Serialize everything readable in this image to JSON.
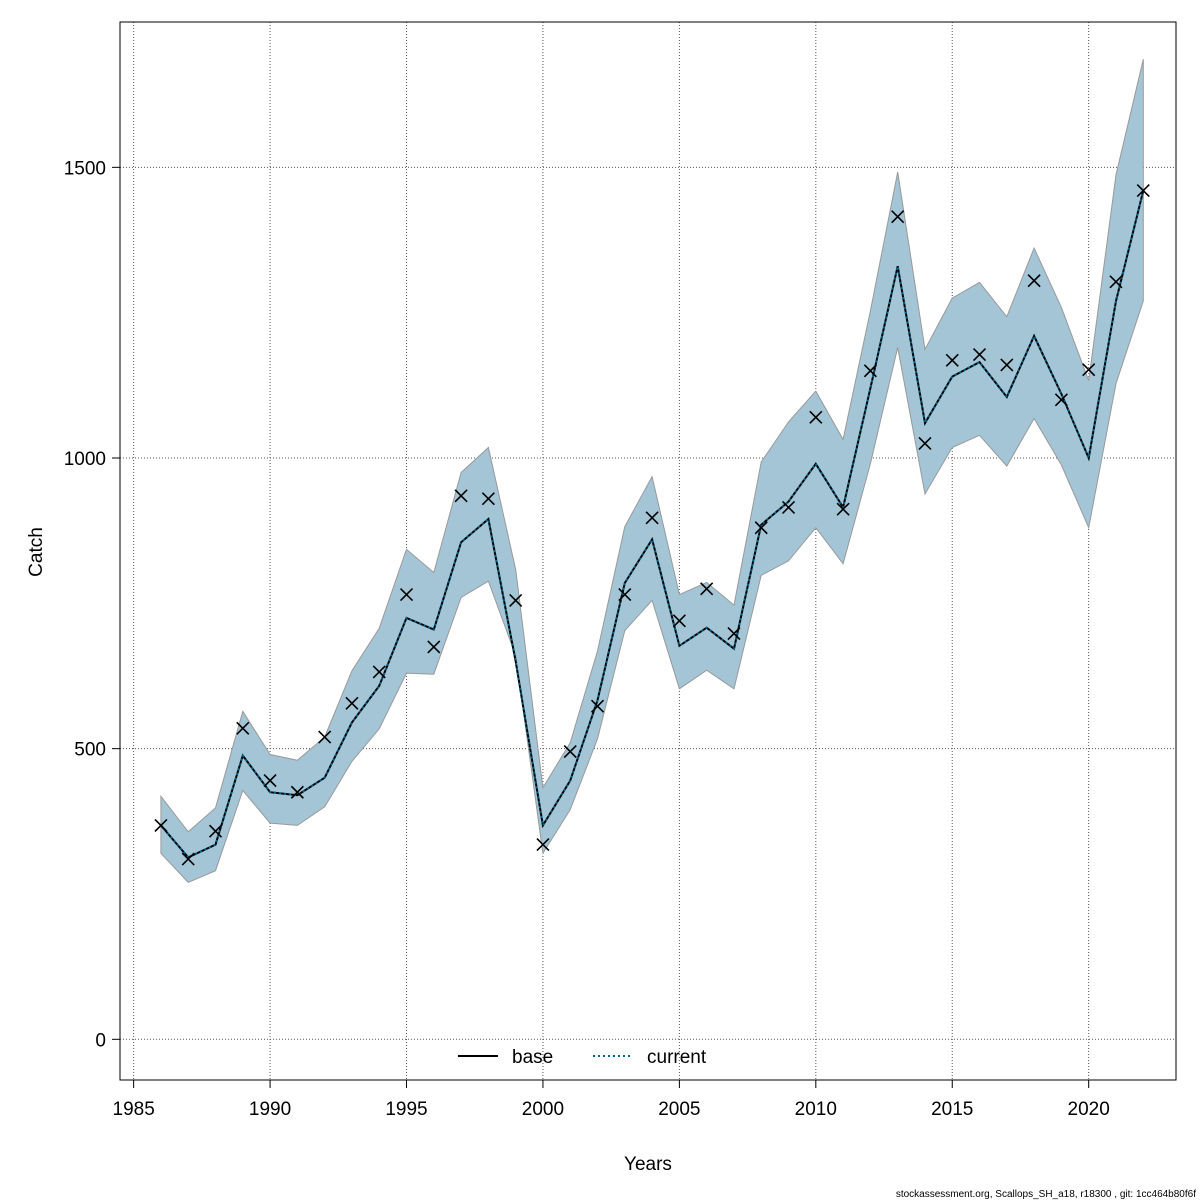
{
  "chart_data": {
    "type": "line",
    "xlabel": "Years",
    "ylabel": "Catch",
    "xlim": [
      1984.5,
      2023.2
    ],
    "ylim": [
      -70,
      1750
    ],
    "x_ticks": [
      1985,
      1990,
      1995,
      2000,
      2005,
      2010,
      2015,
      2020
    ],
    "y_ticks": [
      0,
      500,
      1000,
      1500
    ],
    "grid": true,
    "legend_position": "bottom",
    "x": [
      1986,
      1987,
      1988,
      1989,
      1990,
      1991,
      1992,
      1993,
      1994,
      1995,
      1996,
      1997,
      1998,
      1999,
      2000,
      2001,
      2002,
      2003,
      2004,
      2005,
      2006,
      2007,
      2008,
      2009,
      2010,
      2011,
      2012,
      2013,
      2014,
      2015,
      2016,
      2017,
      2018,
      2019,
      2020,
      2021,
      2022
    ],
    "series": [
      {
        "name": "base",
        "style": "solid",
        "color": "#000000",
        "values": [
          368,
          313,
          335,
          488,
          425,
          420,
          450,
          545,
          608,
          725,
          705,
          855,
          895,
          650,
          368,
          445,
          583,
          785,
          860,
          677,
          708,
          672,
          885,
          925,
          990,
          915,
          1120,
          1330,
          1060,
          1140,
          1165,
          1105,
          1210,
          1110,
          1000,
          1270,
          1460
        ]
      },
      {
        "name": "current",
        "style": "dotted",
        "color": "#00668f",
        "values": [
          368,
          313,
          335,
          488,
          425,
          420,
          450,
          545,
          608,
          725,
          705,
          855,
          895,
          650,
          368,
          445,
          583,
          785,
          860,
          677,
          708,
          672,
          885,
          925,
          990,
          915,
          1120,
          1330,
          1060,
          1140,
          1165,
          1105,
          1210,
          1110,
          1000,
          1270,
          1460
        ]
      }
    ],
    "ci_upper": [
      418,
      357,
      398,
      564,
      490,
      480,
      520,
      634,
      707,
      843,
      803,
      975,
      1018,
      808,
      433,
      510,
      668,
      882,
      968,
      765,
      786,
      747,
      993,
      1062,
      1115,
      1032,
      1253,
      1492,
      1187,
      1275,
      1302,
      1243,
      1361,
      1259,
      1133,
      1487,
      1686
    ],
    "ci_lower": [
      320,
      270,
      290,
      428,
      372,
      368,
      400,
      478,
      534,
      630,
      628,
      760,
      788,
      660,
      320,
      395,
      517,
      703,
      755,
      603,
      635,
      603,
      798,
      823,
      880,
      818,
      990,
      1190,
      938,
      1018,
      1039,
      986,
      1068,
      988,
      880,
      1128,
      1270
    ],
    "observed": {
      "marker": "x",
      "values": [
        368,
        310,
        358,
        535,
        445,
        425,
        520,
        578,
        632,
        765,
        675,
        935,
        930,
        755,
        335,
        495,
        573,
        765,
        897,
        720,
        775,
        698,
        880,
        915,
        1070,
        912,
        1150,
        1415,
        1025,
        1168,
        1178,
        1160,
        1305,
        1100,
        1152,
        1303,
        1460
      ]
    },
    "ci_fill_color": "#a3c5d6",
    "ci_edge_color": "#999999"
  },
  "footer": "stockassessment.org, Scallops_SH_a18, r18300 , git: 1cc464b80f6f"
}
